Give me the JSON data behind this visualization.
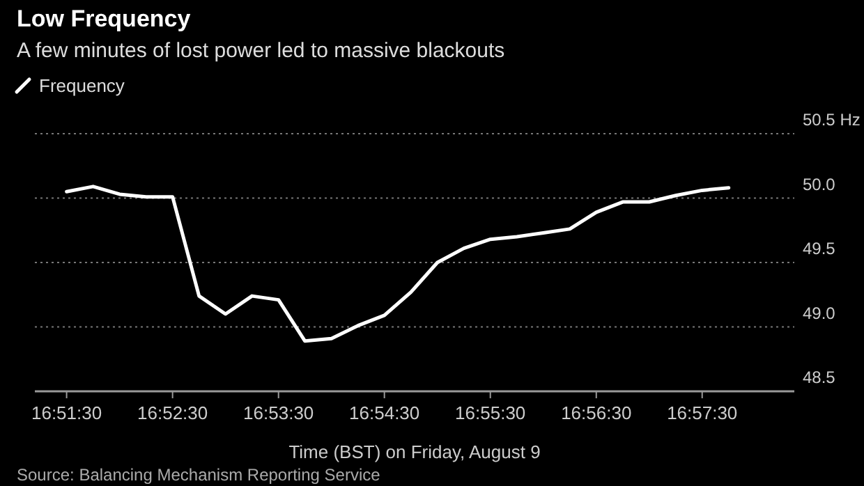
{
  "chart_data": {
    "type": "line",
    "title": "Low Frequency",
    "subtitle": "A few minutes of lost power led to massive blackouts",
    "xlabel": "Time (BST) on Friday, August 9",
    "annotations": [
      "Source: Balancing Mechanism Reporting Service"
    ],
    "x": [
      16.85833,
      16.8625,
      16.86667,
      16.87083,
      16.875,
      16.87917,
      16.88333,
      16.8875,
      16.89167,
      16.89583,
      16.9,
      16.90417,
      16.90833,
      16.9125,
      16.91667,
      16.92083,
      16.925,
      16.92917,
      16.93333,
      16.9375,
      16.94167,
      16.94583,
      16.95,
      16.95417,
      16.95833,
      16.9625
    ],
    "series": [
      {
        "name": "Frequency",
        "color": "#ffffff",
        "values": [
          50.05,
          50.09,
          50.03,
          50.01,
          50.01,
          49.24,
          49.1,
          49.24,
          49.21,
          48.89,
          48.91,
          49.01,
          49.09,
          49.27,
          49.5,
          49.61,
          49.68,
          49.7,
          49.73,
          49.76,
          49.89,
          49.97,
          49.97,
          50.02,
          50.06,
          50.08
        ]
      }
    ],
    "xlim": [
      16.85333,
      16.97283
    ],
    "xticks": [
      {
        "value": 16.85833,
        "label": "16:51:30"
      },
      {
        "value": 16.875,
        "label": "16:52:30"
      },
      {
        "value": 16.89167,
        "label": "16:53:30"
      },
      {
        "value": 16.90833,
        "label": "16:54:30"
      },
      {
        "value": 16.925,
        "label": "16:55:30"
      },
      {
        "value": 16.94167,
        "label": "16:56:30"
      },
      {
        "value": 16.95833,
        "label": "16:57:30"
      }
    ],
    "ylim": [
      48.5,
      50.5
    ],
    "yticks": [
      48.5,
      {
        "value": 49,
        "label": "49.0"
      },
      49.5,
      {
        "value": 50,
        "label": "50.0"
      },
      {
        "value": 50.5,
        "label": "50.5 Hz"
      }
    ],
    "grid": "y",
    "legend": "top left",
    "marker": "none",
    "line_style": "solid"
  }
}
